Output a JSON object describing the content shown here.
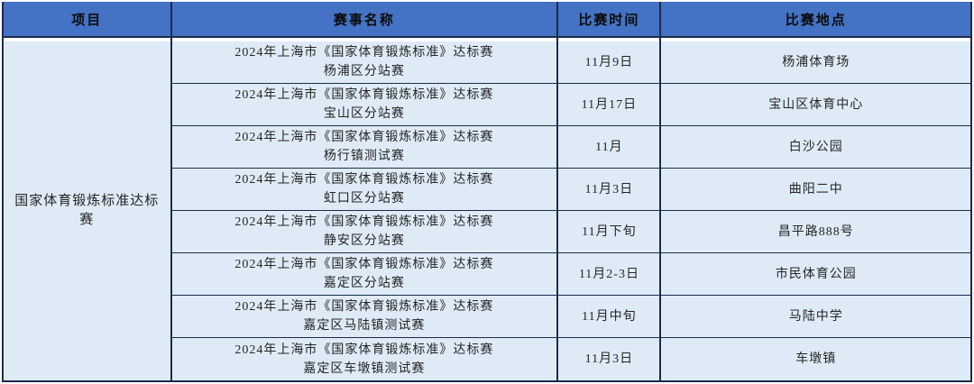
{
  "colors": {
    "header_bg": "#4472C4",
    "body_bg": "#DEEBF7",
    "border": "#1C2B4A",
    "header_text": "#0B0B0B",
    "body_text": "#252525",
    "page_bg": "#FFFFFF"
  },
  "header": {
    "project": "项目",
    "event": "赛事名称",
    "time": "比赛时间",
    "location": "比赛地点"
  },
  "project_group": "国家体育锻炼标准达标赛",
  "rows": [
    {
      "event_title": "2024年上海市《国家体育锻炼标准》达标赛",
      "event_subtitle": "杨浦区分站赛",
      "time": "11月9日",
      "location": "杨浦体育场"
    },
    {
      "event_title": "2024年上海市《国家体育锻炼标准》达标赛",
      "event_subtitle": "宝山区分站赛",
      "time": "11月17日",
      "location": "宝山区体育中心"
    },
    {
      "event_title": "2024年上海市《国家体育锻炼标准》达标赛",
      "event_subtitle": "杨行镇测试赛",
      "time": "11月",
      "location": "白沙公园"
    },
    {
      "event_title": "2024年上海市《国家体育锻炼标准》达标赛",
      "event_subtitle": "虹口区分站赛",
      "time": "11月3日",
      "location": "曲阳二中"
    },
    {
      "event_title": "2024年上海市《国家体育锻炼标准》达标赛",
      "event_subtitle": "静安区分站赛",
      "time": "11月下旬",
      "location": "昌平路888号"
    },
    {
      "event_title": "2024年上海市《国家体育锻炼标准》达标赛",
      "event_subtitle": "嘉定区分站赛",
      "time": "11月2-3日",
      "location": "市民体育公园"
    },
    {
      "event_title": "2024年上海市《国家体育锻炼标准》达标赛",
      "event_subtitle": "嘉定区马陆镇测试赛",
      "time": "11月中旬",
      "location": "马陆中学"
    },
    {
      "event_title": "2024年上海市《国家体育锻炼标准》达标赛",
      "event_subtitle": "嘉定区车墩镇测试赛",
      "time": "11月3日",
      "location": "车墩镇"
    }
  ]
}
